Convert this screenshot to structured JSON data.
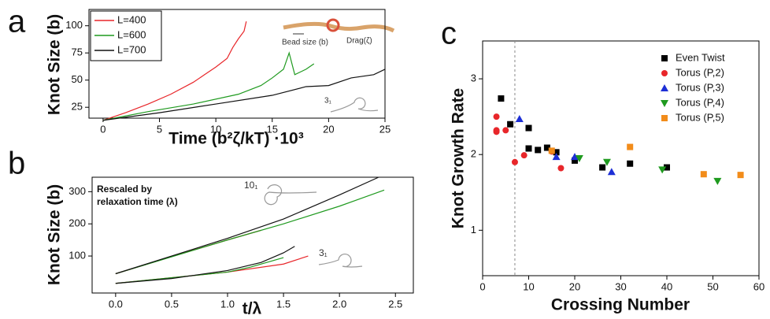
{
  "chart_data": [
    {
      "type": "line",
      "panel": "a",
      "ylabel": "Knot Size (b)",
      "xlabel": "Time (b²ζ/kT) ·10³",
      "xlim": [
        -1.25,
        25
      ],
      "ylim": [
        15,
        115
      ],
      "xticks": [
        0,
        5,
        10,
        15,
        20,
        25
      ],
      "yticks": [
        25,
        50,
        75,
        100
      ],
      "legend": "upper left",
      "annotations": [
        "Bead size (b)",
        "Drag(ζ)",
        "3₁"
      ],
      "series": [
        {
          "name": "L=400",
          "color": "#e8262a",
          "x": [
            0,
            2,
            4,
            6,
            8,
            9,
            10,
            11,
            11.5,
            12,
            12.5,
            12.7
          ],
          "values": [
            13,
            20,
            28,
            37,
            48,
            55,
            62,
            70,
            80,
            88,
            95,
            104
          ]
        },
        {
          "name": "L=600",
          "color": "#1f9a1f",
          "x": [
            0,
            4,
            8,
            12,
            14,
            15,
            16,
            16.5,
            17,
            18,
            18.7
          ],
          "values": [
            13,
            21,
            28,
            37,
            45,
            52,
            60,
            75,
            55,
            60,
            65
          ]
        },
        {
          "name": "L=700",
          "color": "#111111",
          "x": [
            0,
            5,
            10,
            15,
            18,
            20,
            22,
            24,
            25
          ],
          "values": [
            13,
            20,
            28,
            36,
            44,
            45,
            52,
            55,
            60
          ]
        }
      ]
    },
    {
      "type": "line",
      "panel": "b",
      "ylabel": "Knot Size (b)",
      "xlabel": "t/λ",
      "xlim": [
        -0.21,
        2.66
      ],
      "ylim": [
        -15,
        345
      ],
      "xticks": [
        {
          "value": 0,
          "label": "0.0"
        },
        0.5,
        {
          "value": 1,
          "label": "1.0"
        },
        1.5,
        {
          "value": 2,
          "label": "2.0"
        },
        2.5
      ],
      "yticks": [
        100,
        200,
        300
      ],
      "annotations": [
        "Rescaled by",
        "relaxation time (λ)",
        "10₁",
        "3₁"
      ],
      "series": [
        {
          "color": "#e8262a",
          "x": [
            0,
            0.5,
            1,
            1.3
          ],
          "values": [
            45,
            98,
            150,
            180
          ]
        },
        {
          "color": "#1f9a1f",
          "x": [
            0,
            1,
            1.5,
            2,
            2.4
          ],
          "values": [
            45,
            150,
            200,
            255,
            305
          ]
        },
        {
          "color": "#111111",
          "x": [
            0,
            0.5,
            1,
            1.5,
            2,
            2.35
          ],
          "values": [
            45,
            100,
            155,
            215,
            290,
            345
          ]
        },
        {
          "color": "#e8262a",
          "x": [
            0,
            1,
            1.5,
            1.72
          ],
          "values": [
            15,
            50,
            75,
            100
          ]
        },
        {
          "color": "#1f9a1f",
          "x": [
            0,
            1,
            1.2,
            1.5
          ],
          "values": [
            15,
            50,
            65,
            95
          ]
        },
        {
          "color": "#111111",
          "x": [
            0,
            0.5,
            1,
            1.3,
            1.5,
            1.6
          ],
          "values": [
            15,
            30,
            55,
            80,
            110,
            130
          ]
        }
      ]
    },
    {
      "type": "scatter",
      "panel": "c",
      "ylabel": "Knot Growth Rate",
      "xlabel": "Crossing Number",
      "xlim": [
        0,
        60
      ],
      "ylim": [
        0.4,
        3.5
      ],
      "xticks": [
        0,
        10,
        20,
        30,
        40,
        50,
        60
      ],
      "yticks": [
        1,
        2,
        3
      ],
      "legend": "upper right",
      "vline": 7,
      "series": [
        {
          "name": "Even Twist",
          "color": "#000000",
          "marker": "square",
          "x": [
            4,
            6,
            10,
            10,
            12,
            14,
            16,
            20,
            26,
            32,
            40
          ],
          "values": [
            2.74,
            2.4,
            2.35,
            2.08,
            2.06,
            2.09,
            2.03,
            1.92,
            1.83,
            1.88,
            1.83
          ]
        },
        {
          "name": "Torus (P,2)",
          "color": "#e8262a",
          "marker": "circle",
          "x": [
            3,
            3,
            3,
            5,
            7,
            9,
            15,
            17
          ],
          "values": [
            2.5,
            2.32,
            2.3,
            2.32,
            1.9,
            1.99,
            2.04,
            1.82
          ]
        },
        {
          "name": "Torus (P,3)",
          "color": "#1d2fd6",
          "marker": "triangle-up",
          "x": [
            8,
            16,
            20,
            28
          ],
          "values": [
            2.47,
            1.97,
            1.97,
            1.77
          ]
        },
        {
          "name": "Torus (P,4)",
          "color": "#1f9a1f",
          "marker": "triangle-down",
          "x": [
            21,
            27,
            39,
            51
          ],
          "values": [
            1.95,
            1.9,
            1.8,
            1.65
          ]
        },
        {
          "name": "Torus (P,5)",
          "color": "#f28c1a",
          "marker": "square",
          "x": [
            15,
            32,
            48,
            56
          ],
          "values": [
            2.05,
            2.1,
            1.74,
            1.73
          ]
        }
      ]
    }
  ]
}
